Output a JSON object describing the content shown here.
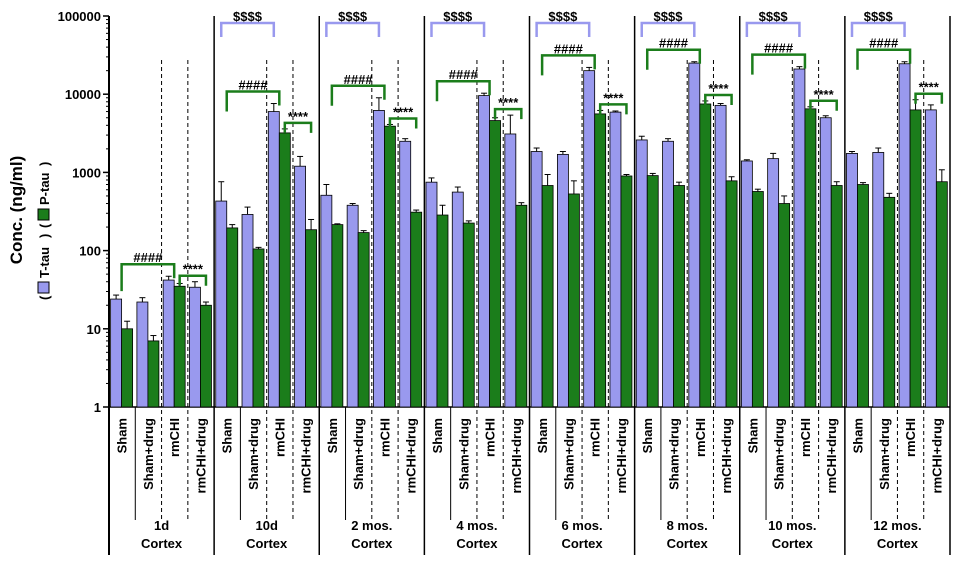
{
  "chart_data": {
    "type": "bar",
    "scale": "log",
    "ylim": [
      1,
      100000
    ],
    "yticks": [
      "1",
      "10",
      "100",
      "1000",
      "10000",
      "100000"
    ],
    "ylabel": "Conc. (ng/ml)",
    "legend": [
      {
        "name": "T-tau",
        "color": "#9999ee"
      },
      {
        "name": "P-tau",
        "color": "#1b7d1b"
      }
    ],
    "categories": [
      "Sham",
      "Sham+drug",
      "rmCHI",
      "rmCHI+drug"
    ],
    "region": "Cortex",
    "panels": [
      {
        "time": "1d",
        "ttau": [
          24,
          22,
          42,
          34
        ],
        "ttau_err": [
          27,
          25,
          47,
          40
        ],
        "ptau": [
          10,
          7,
          35,
          20
        ],
        "ptau_err": [
          12.5,
          8.2,
          38,
          22
        ],
        "brackets": [
          {
            "kind": "hash",
            "label": "####",
            "from": 0,
            "to": 2
          },
          {
            "kind": "star",
            "label": "****",
            "from": 2,
            "to": 3
          }
        ]
      },
      {
        "time": "10d",
        "ttau": [
          430,
          290,
          6000,
          1200
        ],
        "ttau_err": [
          760,
          360,
          7600,
          1600
        ],
        "ptau": [
          195,
          105,
          3200,
          185
        ],
        "ptau_err": [
          215,
          110,
          3600,
          250
        ],
        "brackets": [
          {
            "kind": "dollar",
            "label": "$$$$",
            "from": 0,
            "to": 2
          },
          {
            "kind": "hash",
            "label": "####",
            "from": 0,
            "to": 2
          },
          {
            "kind": "star",
            "label": "****",
            "from": 2,
            "to": 3
          }
        ]
      },
      {
        "time": "2 mos.",
        "ttau": [
          510,
          380,
          6200,
          2500
        ],
        "ttau_err": [
          700,
          400,
          9000,
          2700
        ],
        "ptau": [
          215,
          170,
          3900,
          310
        ],
        "ptau_err": [
          220,
          180,
          4100,
          330
        ],
        "brackets": [
          {
            "kind": "dollar",
            "label": "$$$$",
            "from": 0,
            "to": 2
          },
          {
            "kind": "hash",
            "label": "####",
            "from": 0,
            "to": 2
          },
          {
            "kind": "star",
            "label": "****",
            "from": 2,
            "to": 3
          }
        ]
      },
      {
        "time": "4 mos.",
        "ttau": [
          750,
          560,
          9600,
          3100
        ],
        "ttau_err": [
          850,
          650,
          10300,
          5400
        ],
        "ptau": [
          285,
          225,
          4600,
          380
        ],
        "ptau_err": [
          380,
          240,
          5000,
          410
        ],
        "brackets": [
          {
            "kind": "dollar",
            "label": "$$$$",
            "from": 0,
            "to": 2
          },
          {
            "kind": "hash",
            "label": "####",
            "from": 0,
            "to": 2
          },
          {
            "kind": "star",
            "label": "****",
            "from": 2,
            "to": 3
          }
        ]
      },
      {
        "time": "6 mos.",
        "ttau": [
          1850,
          1700,
          20000,
          5900
        ],
        "ttau_err": [
          2050,
          1850,
          22000,
          6100
        ],
        "ptau": [
          680,
          530,
          5600,
          900
        ],
        "ptau_err": [
          940,
          780,
          6200,
          940
        ],
        "brackets": [
          {
            "kind": "dollar",
            "label": "$$$$",
            "from": 0,
            "to": 2
          },
          {
            "kind": "hash",
            "label": "####",
            "from": 0,
            "to": 2
          },
          {
            "kind": "star",
            "label": "****",
            "from": 2,
            "to": 3
          }
        ]
      },
      {
        "time": "8 mos.",
        "ttau": [
          2600,
          2500,
          25000,
          7200
        ],
        "ttau_err": [
          2900,
          2700,
          26000,
          7600
        ],
        "ptau": [
          910,
          680,
          7500,
          780
        ],
        "ptau_err": [
          970,
          750,
          8200,
          880
        ],
        "brackets": [
          {
            "kind": "dollar",
            "label": "$$$$",
            "from": 0,
            "to": 2
          },
          {
            "kind": "hash",
            "label": "####",
            "from": 0,
            "to": 2
          },
          {
            "kind": "star",
            "label": "****",
            "from": 2,
            "to": 3
          }
        ]
      },
      {
        "time": "10 mos.",
        "ttau": [
          1400,
          1500,
          21000,
          5000
        ],
        "ttau_err": [
          1450,
          1750,
          22500,
          5300
        ],
        "ptau": [
          570,
          400,
          6500,
          680
        ],
        "ptau_err": [
          610,
          500,
          6900,
          760
        ],
        "brackets": [
          {
            "kind": "dollar",
            "label": "$$$$",
            "from": 0,
            "to": 2
          },
          {
            "kind": "hash",
            "label": "####",
            "from": 0,
            "to": 2
          },
          {
            "kind": "star",
            "label": "****",
            "from": 2,
            "to": 3
          }
        ]
      },
      {
        "time": "12 mos.",
        "ttau": [
          1750,
          1800,
          24500,
          6300
        ],
        "ttau_err": [
          1850,
          2050,
          26000,
          7300
        ],
        "ptau": [
          700,
          480,
          6300,
          760
        ],
        "ptau_err": [
          740,
          540,
          8500,
          1080
        ],
        "brackets": [
          {
            "kind": "dollar",
            "label": "$$$$",
            "from": 0,
            "to": 2
          },
          {
            "kind": "hash",
            "label": "####",
            "from": 0,
            "to": 2
          },
          {
            "kind": "star",
            "label": "****",
            "from": 2,
            "to": 3
          }
        ]
      }
    ]
  }
}
